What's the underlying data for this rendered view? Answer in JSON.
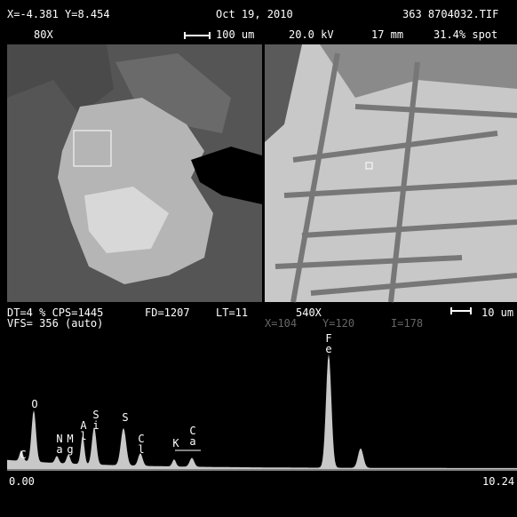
{
  "header": {
    "coords": "X=-4.381 Y=8.454",
    "date": "Oct 19, 2010",
    "file": "363 8704032.TIF",
    "mag": "80X",
    "scale": "100 um",
    "kv": "20.0 kV",
    "wd": "17 mm",
    "spot": "31.4% spot"
  },
  "status": {
    "dt_cps": "DT=4 % CPS=1445",
    "fd": "FD=1207",
    "lt": "LT=11",
    "mag": "540X",
    "scale": "10 um",
    "vfs": "VFS= 356 (auto)",
    "x": "X=104",
    "y": "Y=120",
    "i": "I=178"
  },
  "spectrum": {
    "peaks": [
      {
        "label": "C"
      },
      {
        "label": "O"
      },
      {
        "label": "Na"
      },
      {
        "label": "Mg"
      },
      {
        "label": "Al"
      },
      {
        "label": "Si"
      },
      {
        "label": "S"
      },
      {
        "label": "Cl"
      },
      {
        "label": "K"
      },
      {
        "label": "Ca"
      },
      {
        "label": "Fe"
      }
    ],
    "axis_start": "0.00",
    "axis_end": "10.24"
  }
}
